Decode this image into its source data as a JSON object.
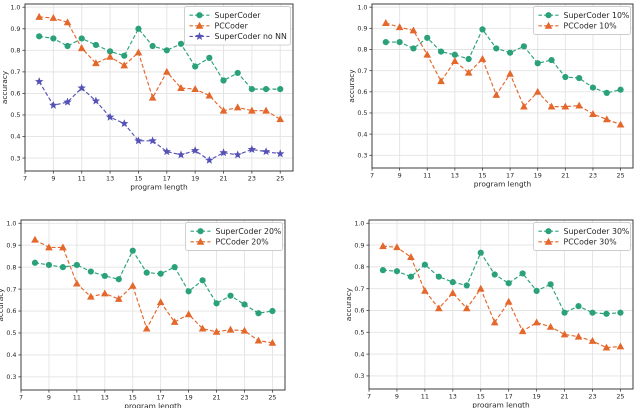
{
  "figure": {
    "background": "#ffffff",
    "grid_color": "#e3e3e3",
    "spine_color": "#3c3c3c",
    "tick_text_color": "#262626",
    "legend_border_color": "#cccccc"
  },
  "chart_data": [
    {
      "type": "line",
      "position": "top-left",
      "xlabel": "program length",
      "ylabel": "accuracy",
      "x": [
        8,
        9,
        10,
        11,
        12,
        13,
        14,
        15,
        16,
        17,
        18,
        19,
        20,
        21,
        22,
        23,
        24,
        25
      ],
      "xticks": [
        7,
        9,
        11,
        13,
        15,
        17,
        19,
        21,
        23,
        25
      ],
      "yticks": [
        0.3,
        0.4,
        0.5,
        0.6,
        0.7,
        0.8,
        0.9,
        1.0
      ],
      "xlim": [
        7.0,
        25.9
      ],
      "ylim": [
        0.24,
        1.015
      ],
      "grid": true,
      "legend_position": "upper right",
      "series": [
        {
          "name": "SuperCoder",
          "marker": "circle",
          "linestyle": "dashed",
          "color": "#2aa17b",
          "values": [
            0.865,
            0.855,
            0.82,
            0.855,
            0.825,
            0.795,
            0.775,
            0.9,
            0.82,
            0.8,
            0.83,
            0.725,
            0.765,
            0.66,
            0.695,
            0.62,
            0.62,
            0.62
          ]
        },
        {
          "name": "PCCoder",
          "marker": "triangle",
          "linestyle": "dashed",
          "color": "#e4672c",
          "values": [
            0.955,
            0.95,
            0.93,
            0.81,
            0.74,
            0.77,
            0.73,
            0.79,
            0.58,
            0.7,
            0.625,
            0.62,
            0.59,
            0.52,
            0.535,
            0.52,
            0.52,
            0.48
          ]
        },
        {
          "name": "SuperCoder no NN",
          "marker": "star",
          "linestyle": "dashed",
          "color": "#5552b6",
          "values": [
            0.655,
            0.545,
            0.56,
            0.625,
            0.565,
            0.49,
            0.46,
            0.38,
            0.38,
            0.33,
            0.315,
            0.335,
            0.29,
            0.325,
            0.315,
            0.34,
            0.33,
            0.32
          ]
        }
      ]
    },
    {
      "type": "line",
      "position": "top-right",
      "xlabel": "program length",
      "ylabel": "accuracy",
      "x": [
        8,
        9,
        10,
        11,
        12,
        13,
        14,
        15,
        16,
        17,
        18,
        19,
        20,
        21,
        22,
        23,
        24,
        25
      ],
      "xticks": [
        7,
        9,
        11,
        13,
        15,
        17,
        19,
        21,
        23,
        25
      ],
      "yticks": [
        0.3,
        0.4,
        0.5,
        0.6,
        0.7,
        0.8,
        0.9,
        1.0
      ],
      "xlim": [
        7.0,
        25.9
      ],
      "ylim": [
        0.24,
        1.015
      ],
      "grid": true,
      "legend_position": "upper right",
      "series": [
        {
          "name": "SuperCoder 10%",
          "marker": "circle",
          "linestyle": "dashed",
          "color": "#2aa17b",
          "values": [
            0.835,
            0.835,
            0.805,
            0.855,
            0.79,
            0.775,
            0.755,
            0.895,
            0.805,
            0.785,
            0.815,
            0.735,
            0.75,
            0.67,
            0.665,
            0.62,
            0.595,
            0.61
          ]
        },
        {
          "name": "PCCoder 10%",
          "marker": "triangle",
          "linestyle": "dashed",
          "color": "#e4672c",
          "values": [
            0.925,
            0.905,
            0.89,
            0.775,
            0.65,
            0.745,
            0.69,
            0.755,
            0.585,
            0.685,
            0.53,
            0.6,
            0.53,
            0.53,
            0.535,
            0.495,
            0.47,
            0.445
          ]
        }
      ]
    },
    {
      "type": "line",
      "position": "bottom-left",
      "xlabel": "program length",
      "ylabel": "accuracy",
      "x": [
        8,
        9,
        10,
        11,
        12,
        13,
        14,
        15,
        16,
        17,
        18,
        19,
        20,
        21,
        22,
        23,
        24,
        25
      ],
      "xticks": [
        7,
        9,
        11,
        13,
        15,
        17,
        19,
        21,
        23,
        25
      ],
      "yticks": [
        0.3,
        0.4,
        0.5,
        0.6,
        0.7,
        0.8,
        0.9,
        1.0
      ],
      "xlim": [
        7.0,
        25.9
      ],
      "ylim": [
        0.24,
        1.015
      ],
      "grid": true,
      "legend_position": "upper right",
      "series": [
        {
          "name": "SuperCoder 20%",
          "marker": "circle",
          "linestyle": "dashed",
          "color": "#2aa17b",
          "values": [
            0.82,
            0.81,
            0.8,
            0.81,
            0.78,
            0.76,
            0.745,
            0.875,
            0.775,
            0.77,
            0.8,
            0.69,
            0.74,
            0.635,
            0.67,
            0.63,
            0.59,
            0.6
          ]
        },
        {
          "name": "PCCoder 20%",
          "marker": "triangle",
          "linestyle": "dashed",
          "color": "#e4672c",
          "values": [
            0.925,
            0.89,
            0.89,
            0.725,
            0.665,
            0.68,
            0.655,
            0.715,
            0.52,
            0.64,
            0.55,
            0.585,
            0.52,
            0.505,
            0.515,
            0.51,
            0.465,
            0.455
          ]
        }
      ]
    },
    {
      "type": "line",
      "position": "bottom-right",
      "xlabel": "program length",
      "ylabel": "accuracy",
      "x": [
        8,
        9,
        10,
        11,
        12,
        13,
        14,
        15,
        16,
        17,
        18,
        19,
        20,
        21,
        22,
        23,
        24,
        25
      ],
      "xticks": [
        7,
        9,
        11,
        13,
        15,
        17,
        19,
        21,
        23,
        25
      ],
      "yticks": [
        0.3,
        0.4,
        0.5,
        0.6,
        0.7,
        0.8,
        0.9,
        1.0
      ],
      "xlim": [
        7.0,
        25.9
      ],
      "ylim": [
        0.24,
        1.015
      ],
      "grid": true,
      "legend_position": "upper right",
      "series": [
        {
          "name": "SuperCoder 30%",
          "marker": "circle",
          "linestyle": "dashed",
          "color": "#2aa17b",
          "values": [
            0.785,
            0.78,
            0.755,
            0.81,
            0.755,
            0.73,
            0.715,
            0.865,
            0.765,
            0.725,
            0.77,
            0.69,
            0.72,
            0.59,
            0.62,
            0.59,
            0.585,
            0.59
          ]
        },
        {
          "name": "PCCoder 30%",
          "marker": "triangle",
          "linestyle": "dashed",
          "color": "#e4672c",
          "values": [
            0.895,
            0.89,
            0.845,
            0.69,
            0.61,
            0.68,
            0.61,
            0.7,
            0.545,
            0.64,
            0.505,
            0.545,
            0.525,
            0.49,
            0.48,
            0.46,
            0.43,
            0.435
          ]
        }
      ]
    }
  ]
}
